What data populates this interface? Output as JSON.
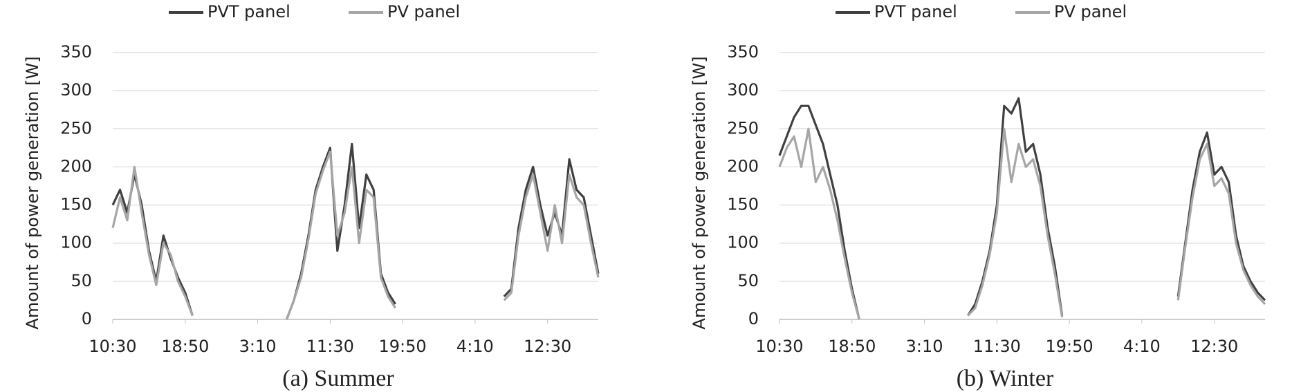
{
  "chart_data": [
    {
      "type": "line",
      "caption": "(a) Summer",
      "y_label": "Amount of power generation [W]",
      "categories": [
        "10:30",
        null,
        null,
        null,
        null,
        null,
        null,
        null,
        null,
        null,
        "18:50",
        null,
        null,
        null,
        null,
        null,
        null,
        null,
        null,
        null,
        "3:10",
        null,
        null,
        null,
        null,
        null,
        null,
        null,
        null,
        null,
        "11:30",
        null,
        null,
        null,
        null,
        null,
        null,
        null,
        null,
        null,
        "19:50",
        null,
        null,
        null,
        null,
        null,
        null,
        null,
        null,
        null,
        "4:10",
        null,
        null,
        null,
        null,
        null,
        null,
        null,
        null,
        null,
        "12:30",
        null,
        null,
        null,
        null,
        null,
        null,
        null
      ],
      "series": [
        {
          "name": "PVT panel",
          "color": "#404040",
          "values": [
            150,
            170,
            140,
            190,
            150,
            90,
            50,
            110,
            80,
            55,
            35,
            5,
            null,
            null,
            null,
            null,
            null,
            null,
            null,
            null,
            null,
            null,
            null,
            null,
            0,
            25,
            60,
            110,
            170,
            200,
            225,
            90,
            150,
            230,
            120,
            190,
            170,
            60,
            35,
            20,
            null,
            null,
            null,
            null,
            null,
            null,
            null,
            null,
            null,
            null,
            null,
            null,
            null,
            null,
            30,
            40,
            120,
            170,
            200,
            150,
            110,
            140,
            110,
            210,
            170,
            160,
            110,
            60
          ]
        },
        {
          "name": "PV panel",
          "color": "#a6a6a6",
          "values": [
            120,
            160,
            130,
            200,
            140,
            85,
            45,
            100,
            85,
            50,
            30,
            5,
            null,
            null,
            null,
            null,
            null,
            null,
            null,
            null,
            null,
            null,
            null,
            null,
            0,
            25,
            55,
            105,
            165,
            195,
            220,
            110,
            140,
            200,
            100,
            170,
            160,
            55,
            30,
            15,
            null,
            null,
            null,
            null,
            null,
            null,
            null,
            null,
            null,
            null,
            null,
            null,
            null,
            null,
            25,
            35,
            110,
            160,
            190,
            140,
            90,
            150,
            100,
            190,
            160,
            150,
            100,
            55
          ]
        }
      ],
      "ylim": [
        0,
        350
      ],
      "yticks": [
        0,
        50,
        100,
        150,
        200,
        250,
        300,
        350
      ],
      "grid": true,
      "legend": "top"
    },
    {
      "type": "line",
      "caption": "(b) Winter",
      "y_label": "Amount of power generation [W]",
      "categories": [
        "10:30",
        null,
        null,
        null,
        null,
        null,
        null,
        null,
        null,
        null,
        "18:50",
        null,
        null,
        null,
        null,
        null,
        null,
        null,
        null,
        null,
        "3:10",
        null,
        null,
        null,
        null,
        null,
        null,
        null,
        null,
        null,
        "11:30",
        null,
        null,
        null,
        null,
        null,
        null,
        null,
        null,
        null,
        "19:50",
        null,
        null,
        null,
        null,
        null,
        null,
        null,
        null,
        null,
        "4:10",
        null,
        null,
        null,
        null,
        null,
        null,
        null,
        null,
        null,
        "12:30",
        null,
        null,
        null,
        null,
        null,
        null,
        null
      ],
      "series": [
        {
          "name": "PVT panel",
          "color": "#404040",
          "values": [
            215,
            240,
            265,
            280,
            280,
            255,
            230,
            190,
            150,
            90,
            40,
            0,
            null,
            null,
            null,
            null,
            null,
            null,
            null,
            null,
            null,
            null,
            null,
            null,
            null,
            null,
            5,
            20,
            50,
            90,
            150,
            280,
            270,
            290,
            220,
            230,
            190,
            120,
            70,
            5,
            null,
            null,
            null,
            null,
            null,
            null,
            null,
            null,
            null,
            null,
            null,
            null,
            null,
            null,
            null,
            30,
            100,
            170,
            220,
            245,
            190,
            200,
            180,
            110,
            70,
            50,
            35,
            25
          ]
        },
        {
          "name": "PV panel",
          "color": "#a6a6a6",
          "values": [
            200,
            225,
            240,
            200,
            250,
            180,
            200,
            170,
            130,
            80,
            35,
            0,
            null,
            null,
            null,
            null,
            null,
            null,
            null,
            null,
            null,
            null,
            null,
            null,
            null,
            null,
            5,
            15,
            45,
            85,
            140,
            250,
            180,
            230,
            200,
            210,
            175,
            110,
            60,
            3,
            null,
            null,
            null,
            null,
            null,
            null,
            null,
            null,
            null,
            null,
            null,
            null,
            null,
            null,
            null,
            25,
            95,
            160,
            210,
            230,
            175,
            185,
            165,
            100,
            65,
            45,
            30,
            20
          ]
        }
      ],
      "ylim": [
        0,
        350
      ],
      "yticks": [
        0,
        50,
        100,
        150,
        200,
        250,
        300,
        350
      ],
      "grid": true,
      "legend": "top"
    }
  ]
}
